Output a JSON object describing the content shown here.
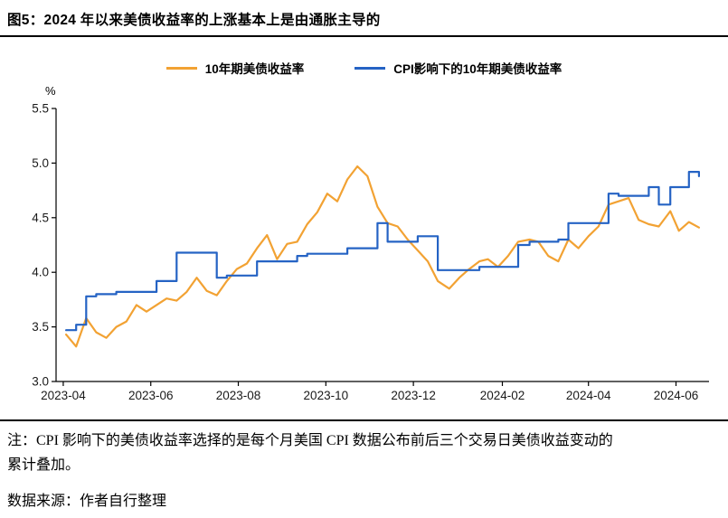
{
  "header": {
    "title": "图5：2024 年以来美债收益率的上涨基本上是由通胀主导的"
  },
  "footer": {
    "note": "注：CPI 影响下的美债收益率选择的是每个月美国 CPI 数据公布前后三个交易日美债收益变动的累计叠加。",
    "source": "数据来源：作者自行整理"
  },
  "chart_data": {
    "type": "line",
    "title": "",
    "xlabel": "",
    "ylabel": "%",
    "ylim": [
      3.0,
      5.5
    ],
    "yticks": [
      3.0,
      3.5,
      4.0,
      4.5,
      5.0,
      5.5
    ],
    "grid": false,
    "legend_position": "top",
    "x_range": [
      "2023-03-27",
      "2024-06-24"
    ],
    "xticks": [
      {
        "d": "2023-04-01",
        "label": "2023-04"
      },
      {
        "d": "2023-06-01",
        "label": "2023-06"
      },
      {
        "d": "2023-08-01",
        "label": "2023-08"
      },
      {
        "d": "2023-10-01",
        "label": "2023-10"
      },
      {
        "d": "2023-12-01",
        "label": "2023-12"
      },
      {
        "d": "2024-02-01",
        "label": "2024-02"
      },
      {
        "d": "2024-04-01",
        "label": "2024-04"
      },
      {
        "d": "2024-06-01",
        "label": "2024-06"
      }
    ],
    "x": [
      "2023-04-03",
      "2023-04-10",
      "2023-04-17",
      "2023-04-24",
      "2023-05-01",
      "2023-05-08",
      "2023-05-15",
      "2023-05-22",
      "2023-05-29",
      "2023-06-05",
      "2023-06-12",
      "2023-06-19",
      "2023-06-26",
      "2023-07-03",
      "2023-07-10",
      "2023-07-17",
      "2023-07-24",
      "2023-07-31",
      "2023-08-07",
      "2023-08-14",
      "2023-08-21",
      "2023-08-28",
      "2023-09-04",
      "2023-09-11",
      "2023-09-18",
      "2023-09-25",
      "2023-10-02",
      "2023-10-09",
      "2023-10-16",
      "2023-10-23",
      "2023-10-30",
      "2023-11-06",
      "2023-11-13",
      "2023-11-20",
      "2023-11-27",
      "2023-12-04",
      "2023-12-11",
      "2023-12-18",
      "2023-12-26",
      "2024-01-02",
      "2024-01-08",
      "2024-01-16",
      "2024-01-22",
      "2024-01-29",
      "2024-02-05",
      "2024-02-12",
      "2024-02-20",
      "2024-02-26",
      "2024-03-04",
      "2024-03-11",
      "2024-03-18",
      "2024-03-25",
      "2024-04-01",
      "2024-04-08",
      "2024-04-15",
      "2024-04-22",
      "2024-04-29",
      "2024-05-06",
      "2024-05-13",
      "2024-05-20",
      "2024-05-28",
      "2024-06-03",
      "2024-06-10",
      "2024-06-17"
    ],
    "series": [
      {
        "name": "10年期美债收益率",
        "color": "#F2A233",
        "step": false,
        "values": [
          3.43,
          3.32,
          3.58,
          3.45,
          3.4,
          3.5,
          3.55,
          3.7,
          3.64,
          3.7,
          3.76,
          3.74,
          3.82,
          3.95,
          3.83,
          3.79,
          3.92,
          4.03,
          4.08,
          4.22,
          4.34,
          4.12,
          4.26,
          4.28,
          4.44,
          4.55,
          4.72,
          4.65,
          4.85,
          4.97,
          4.88,
          4.6,
          4.45,
          4.42,
          4.3,
          4.2,
          4.1,
          3.92,
          3.85,
          3.95,
          4.02,
          4.1,
          4.12,
          4.05,
          4.15,
          4.28,
          4.3,
          4.28,
          4.15,
          4.1,
          4.3,
          4.22,
          4.33,
          4.42,
          4.62,
          4.65,
          4.68,
          4.48,
          4.44,
          4.42,
          4.56,
          4.38,
          4.46,
          4.41
        ]
      },
      {
        "name": "CPI影响下的10年期美债收益率",
        "color": "#2563C4",
        "step": true,
        "values": [
          3.47,
          3.52,
          3.78,
          3.8,
          3.8,
          3.82,
          3.82,
          3.82,
          3.82,
          3.92,
          3.92,
          4.18,
          4.18,
          4.18,
          4.18,
          3.95,
          3.97,
          3.97,
          3.97,
          4.1,
          4.1,
          4.1,
          4.1,
          4.15,
          4.17,
          4.17,
          4.17,
          4.17,
          4.22,
          4.22,
          4.22,
          4.45,
          4.28,
          4.28,
          4.28,
          4.33,
          4.33,
          4.02,
          4.02,
          4.02,
          4.02,
          4.05,
          4.05,
          4.05,
          4.05,
          4.25,
          4.28,
          4.28,
          4.28,
          4.3,
          4.45,
          4.45,
          4.45,
          4.45,
          4.72,
          4.7,
          4.7,
          4.7,
          4.78,
          4.62,
          4.78,
          4.78,
          4.92,
          4.88
        ]
      }
    ]
  }
}
